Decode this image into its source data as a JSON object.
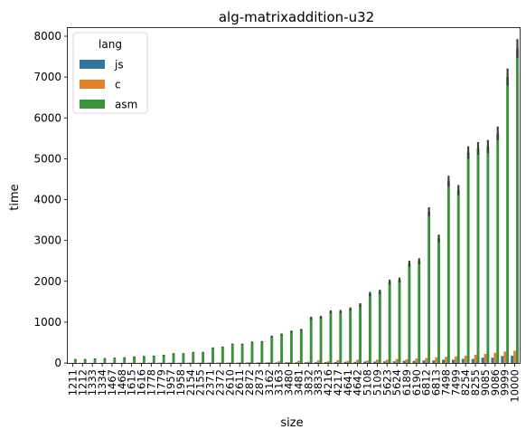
{
  "chart_data": {
    "type": "bar",
    "title": "alg-matrixaddition-u32",
    "xlabel": "size",
    "ylabel": "time",
    "ylim": [
      0,
      8200
    ],
    "yticks": [
      0,
      1000,
      2000,
      3000,
      4000,
      5000,
      6000,
      7000,
      8000
    ],
    "legend": {
      "title": "lang",
      "placement": "top-left"
    },
    "categories": [
      "1211",
      "1212",
      "1333",
      "1334",
      "1467",
      "1468",
      "1615",
      "1616",
      "1778",
      "1779",
      "1957",
      "1958",
      "2154",
      "2155",
      "2371",
      "2372",
      "2610",
      "2611",
      "2872",
      "2873",
      "3162",
      "3163",
      "3480",
      "3481",
      "3832",
      "3833",
      "4216",
      "4217",
      "4641",
      "4642",
      "5108",
      "5109",
      "5623",
      "5624",
      "6189",
      "6190",
      "6812",
      "6813",
      "7498",
      "7499",
      "8254",
      "8255",
      "9085",
      "9086",
      "9999",
      "10000"
    ],
    "series": [
      {
        "name": "js",
        "color": "#3274a1",
        "values": [
          2,
          2,
          2,
          2,
          3,
          3,
          3,
          3,
          4,
          4,
          5,
          5,
          6,
          6,
          7,
          7,
          8,
          8,
          10,
          10,
          12,
          12,
          15,
          15,
          18,
          18,
          22,
          22,
          27,
          27,
          33,
          33,
          40,
          40,
          50,
          50,
          62,
          62,
          80,
          80,
          100,
          100,
          130,
          130,
          170,
          180
        ]
      },
      {
        "name": "c",
        "color": "#e1812c",
        "values": [
          3,
          3,
          4,
          4,
          5,
          5,
          6,
          6,
          7,
          7,
          8,
          8,
          10,
          10,
          12,
          12,
          14,
          14,
          17,
          17,
          20,
          40,
          25,
          50,
          30,
          60,
          40,
          70,
          50,
          80,
          60,
          80,
          80,
          100,
          90,
          110,
          120,
          140,
          150,
          160,
          180,
          200,
          220,
          250,
          280,
          300
        ]
      },
      {
        "name": "asm",
        "color": "#3a923a",
        "values": [
          90,
          90,
          100,
          110,
          120,
          130,
          150,
          160,
          170,
          190,
          230,
          230,
          260,
          260,
          370,
          390,
          460,
          460,
          510,
          520,
          650,
          700,
          770,
          810,
          1100,
          1120,
          1250,
          1260,
          1320,
          1420,
          1690,
          1740,
          1980,
          2030,
          2430,
          2490,
          3700,
          3050,
          4450,
          4230,
          5150,
          5250,
          5300,
          5620,
          7000,
          7700
        ]
      }
    ]
  }
}
